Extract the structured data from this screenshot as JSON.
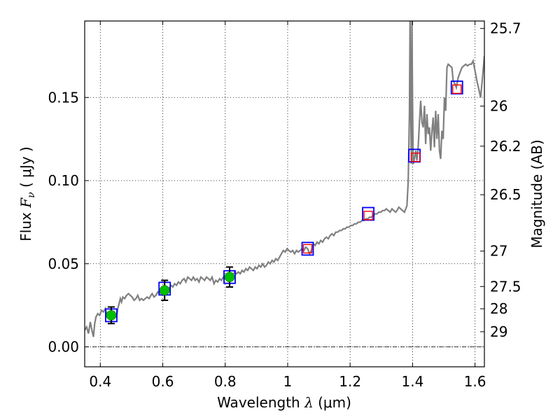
{
  "chart_data": {
    "type": "line",
    "xlabel": "Wavelength",
    "xlabel_symbol": "λ",
    "xlabel_unit": "(μm)",
    "ylabel": "Flux",
    "ylabel_symbol": "F",
    "ylabel_subscript": "ν",
    "ylabel_unit": "( μJy )",
    "y2label": "Magnitude (AB)",
    "xlim": [
      0.35,
      1.63
    ],
    "ylim": [
      -0.012,
      0.196
    ],
    "grid": true,
    "x_ticks": [
      0.4,
      0.6,
      0.8,
      1.0,
      1.2,
      1.4,
      1.6
    ],
    "x_tick_labels": [
      "0.4",
      "0.6",
      "0.8",
      "1",
      "1.2",
      "1.4",
      "1.6"
    ],
    "y_ticks": [
      0.0,
      0.05,
      0.1,
      0.15
    ],
    "y_tick_labels": [
      "0.00",
      "0.05",
      "0.10",
      "0.15"
    ],
    "mag_ticks": [
      {
        "label": "25.7",
        "y": 0.1915
      },
      {
        "label": "26",
        "y": 0.1448
      },
      {
        "label": "26.2",
        "y": 0.1207
      },
      {
        "label": "26.5",
        "y": 0.0915
      },
      {
        "label": "27",
        "y": 0.0576
      },
      {
        "label": "27.5",
        "y": 0.0363
      },
      {
        "label": "28",
        "y": 0.0229
      },
      {
        "label": "29",
        "y": 0.0091
      }
    ],
    "zero_line": {
      "y": 0.0,
      "style": "dash-dot"
    },
    "series": [
      {
        "role": "model_sed",
        "style": "line",
        "color": "#808080",
        "points": [
          [
            0.35,
            0.01
          ],
          [
            0.356,
            0.012
          ],
          [
            0.362,
            0.008
          ],
          [
            0.368,
            0.015
          ],
          [
            0.372,
            0.011
          ],
          [
            0.378,
            0.006
          ],
          [
            0.382,
            0.014
          ],
          [
            0.386,
            0.018
          ],
          [
            0.392,
            0.02
          ],
          [
            0.398,
            0.019
          ],
          [
            0.404,
            0.022
          ],
          [
            0.41,
            0.021
          ],
          [
            0.416,
            0.023
          ],
          [
            0.42,
            0.02
          ],
          [
            0.426,
            0.019
          ],
          [
            0.432,
            0.021
          ],
          [
            0.438,
            0.019
          ],
          [
            0.444,
            0.021
          ],
          [
            0.448,
            0.02
          ],
          [
            0.452,
            0.018
          ],
          [
            0.456,
            0.023
          ],
          [
            0.46,
            0.026
          ],
          [
            0.464,
            0.029
          ],
          [
            0.468,
            0.027
          ],
          [
            0.472,
            0.03
          ],
          [
            0.478,
            0.029
          ],
          [
            0.484,
            0.031
          ],
          [
            0.49,
            0.032
          ],
          [
            0.496,
            0.031
          ],
          [
            0.502,
            0.03
          ],
          [
            0.508,
            0.028
          ],
          [
            0.514,
            0.029
          ],
          [
            0.52,
            0.031
          ],
          [
            0.526,
            0.028
          ],
          [
            0.532,
            0.029
          ],
          [
            0.538,
            0.028
          ],
          [
            0.544,
            0.029
          ],
          [
            0.55,
            0.03
          ],
          [
            0.556,
            0.029
          ],
          [
            0.562,
            0.031
          ],
          [
            0.566,
            0.032
          ],
          [
            0.572,
            0.03
          ],
          [
            0.578,
            0.031
          ],
          [
            0.584,
            0.033
          ],
          [
            0.59,
            0.032
          ],
          [
            0.596,
            0.034
          ],
          [
            0.602,
            0.033
          ],
          [
            0.608,
            0.035
          ],
          [
            0.614,
            0.036
          ],
          [
            0.62,
            0.035
          ],
          [
            0.626,
            0.037
          ],
          [
            0.632,
            0.036
          ],
          [
            0.638,
            0.038
          ],
          [
            0.644,
            0.037
          ],
          [
            0.65,
            0.039
          ],
          [
            0.656,
            0.038
          ],
          [
            0.662,
            0.04
          ],
          [
            0.668,
            0.041
          ],
          [
            0.674,
            0.039
          ],
          [
            0.68,
            0.042
          ],
          [
            0.686,
            0.041
          ],
          [
            0.692,
            0.04
          ],
          [
            0.698,
            0.042
          ],
          [
            0.704,
            0.04
          ],
          [
            0.71,
            0.041
          ],
          [
            0.716,
            0.039
          ],
          [
            0.722,
            0.042
          ],
          [
            0.728,
            0.041
          ],
          [
            0.734,
            0.04
          ],
          [
            0.74,
            0.042
          ],
          [
            0.746,
            0.041
          ],
          [
            0.752,
            0.04
          ],
          [
            0.758,
            0.042
          ],
          [
            0.764,
            0.038
          ],
          [
            0.77,
            0.04
          ],
          [
            0.776,
            0.039
          ],
          [
            0.782,
            0.041
          ],
          [
            0.788,
            0.04
          ],
          [
            0.794,
            0.042
          ],
          [
            0.8,
            0.041
          ],
          [
            0.806,
            0.043
          ],
          [
            0.812,
            0.042
          ],
          [
            0.818,
            0.044
          ],
          [
            0.824,
            0.043
          ],
          [
            0.83,
            0.045
          ],
          [
            0.836,
            0.044
          ],
          [
            0.842,
            0.045
          ],
          [
            0.848,
            0.044
          ],
          [
            0.854,
            0.046
          ],
          [
            0.86,
            0.045
          ],
          [
            0.866,
            0.047
          ],
          [
            0.872,
            0.046
          ],
          [
            0.878,
            0.048
          ],
          [
            0.884,
            0.047
          ],
          [
            0.89,
            0.046
          ],
          [
            0.896,
            0.048
          ],
          [
            0.902,
            0.047
          ],
          [
            0.908,
            0.049
          ],
          [
            0.914,
            0.048
          ],
          [
            0.92,
            0.05
          ],
          [
            0.926,
            0.048
          ],
          [
            0.932,
            0.049
          ],
          [
            0.938,
            0.051
          ],
          [
            0.944,
            0.05
          ],
          [
            0.95,
            0.052
          ],
          [
            0.956,
            0.051
          ],
          [
            0.962,
            0.053
          ],
          [
            0.968,
            0.052
          ],
          [
            0.974,
            0.054
          ],
          [
            0.98,
            0.056
          ],
          [
            0.986,
            0.058
          ],
          [
            0.992,
            0.057
          ],
          [
            0.998,
            0.059
          ],
          [
            1.004,
            0.058
          ],
          [
            1.01,
            0.057
          ],
          [
            1.016,
            0.058
          ],
          [
            1.022,
            0.056
          ],
          [
            1.028,
            0.058
          ],
          [
            1.034,
            0.057
          ],
          [
            1.04,
            0.058
          ],
          [
            1.046,
            0.059
          ],
          [
            1.052,
            0.058
          ],
          [
            1.058,
            0.06
          ],
          [
            1.064,
            0.059
          ],
          [
            1.07,
            0.056
          ],
          [
            1.076,
            0.058
          ],
          [
            1.082,
            0.062
          ],
          [
            1.088,
            0.061
          ],
          [
            1.094,
            0.063
          ],
          [
            1.1,
            0.062
          ],
          [
            1.106,
            0.064
          ],
          [
            1.112,
            0.063
          ],
          [
            1.118,
            0.065
          ],
          [
            1.124,
            0.066
          ],
          [
            1.13,
            0.065
          ],
          [
            1.136,
            0.067
          ],
          [
            1.142,
            0.068
          ],
          [
            1.148,
            0.067
          ],
          [
            1.154,
            0.069
          ],
          [
            1.16,
            0.069
          ],
          [
            1.166,
            0.07
          ],
          [
            1.172,
            0.07
          ],
          [
            1.178,
            0.071
          ],
          [
            1.184,
            0.071
          ],
          [
            1.19,
            0.072
          ],
          [
            1.196,
            0.072
          ],
          [
            1.202,
            0.073
          ],
          [
            1.208,
            0.073
          ],
          [
            1.214,
            0.074
          ],
          [
            1.22,
            0.074
          ],
          [
            1.226,
            0.075
          ],
          [
            1.232,
            0.075
          ],
          [
            1.238,
            0.076
          ],
          [
            1.244,
            0.076
          ],
          [
            1.25,
            0.077
          ],
          [
            1.256,
            0.077
          ],
          [
            1.262,
            0.078
          ],
          [
            1.268,
            0.078
          ],
          [
            1.274,
            0.079
          ],
          [
            1.28,
            0.08
          ],
          [
            1.286,
            0.08
          ],
          [
            1.292,
            0.081
          ],
          [
            1.298,
            0.081
          ],
          [
            1.304,
            0.082
          ],
          [
            1.31,
            0.082
          ],
          [
            1.316,
            0.083
          ],
          [
            1.322,
            0.082
          ],
          [
            1.328,
            0.081
          ],
          [
            1.334,
            0.083
          ],
          [
            1.34,
            0.082
          ],
          [
            1.346,
            0.081
          ],
          [
            1.35,
            0.082
          ],
          [
            1.356,
            0.084
          ],
          [
            1.362,
            0.083
          ],
          [
            1.368,
            0.082
          ],
          [
            1.374,
            0.081
          ],
          [
            1.378,
            0.083
          ],
          [
            1.382,
            0.085
          ],
          [
            1.386,
            0.1
          ],
          [
            1.39,
            0.14
          ],
          [
            1.392,
            0.196
          ],
          [
            1.394,
            0.15
          ],
          [
            1.396,
            0.11
          ],
          [
            1.398,
            0.196
          ],
          [
            1.4,
            0.145
          ],
          [
            1.402,
            0.11
          ],
          [
            1.405,
            0.112
          ],
          [
            1.41,
            0.118
          ],
          [
            1.414,
            0.112
          ],
          [
            1.418,
            0.12
          ],
          [
            1.422,
            0.135
          ],
          [
            1.426,
            0.148
          ],
          [
            1.43,
            0.135
          ],
          [
            1.434,
            0.132
          ],
          [
            1.438,
            0.145
          ],
          [
            1.442,
            0.122
          ],
          [
            1.446,
            0.14
          ],
          [
            1.45,
            0.128
          ],
          [
            1.454,
            0.132
          ],
          [
            1.458,
            0.118
          ],
          [
            1.462,
            0.13
          ],
          [
            1.466,
            0.138
          ],
          [
            1.47,
            0.12
          ],
          [
            1.474,
            0.142
          ],
          [
            1.478,
            0.125
          ],
          [
            1.482,
            0.14
          ],
          [
            1.486,
            0.118
          ],
          [
            1.49,
            0.113
          ],
          [
            1.494,
            0.13
          ],
          [
            1.498,
            0.125
          ],
          [
            1.502,
            0.15
          ],
          [
            1.506,
            0.142
          ],
          [
            1.51,
            0.168
          ],
          [
            1.514,
            0.17
          ],
          [
            1.52,
            0.169
          ],
          [
            1.526,
            0.168
          ],
          [
            1.53,
            0.16
          ],
          [
            1.536,
            0.158
          ],
          [
            1.54,
            0.156
          ],
          [
            1.546,
            0.162
          ],
          [
            1.552,
            0.165
          ],
          [
            1.558,
            0.168
          ],
          [
            1.564,
            0.169
          ],
          [
            1.57,
            0.17
          ],
          [
            1.576,
            0.169
          ],
          [
            1.582,
            0.17
          ],
          [
            1.588,
            0.17
          ],
          [
            1.594,
            0.172
          ],
          [
            1.6,
            0.166
          ],
          [
            1.606,
            0.16
          ],
          [
            1.612,
            0.155
          ],
          [
            1.618,
            0.15
          ],
          [
            1.624,
            0.162
          ],
          [
            1.63,
            0.175
          ]
        ]
      },
      {
        "role": "observed_photometry",
        "style": "circle-errorbar",
        "color": "#00c000",
        "points": [
          {
            "x": 0.435,
            "y": 0.019,
            "err": 0.005
          },
          {
            "x": 0.606,
            "y": 0.034,
            "err": 0.006
          },
          {
            "x": 0.814,
            "y": 0.042,
            "err": 0.006
          }
        ]
      },
      {
        "role": "synthetic_photometry",
        "style": "open-square",
        "color": "#ff0000",
        "points": [
          {
            "x": 1.064,
            "y": 0.059
          },
          {
            "x": 1.258,
            "y": 0.079
          },
          {
            "x": 1.41,
            "y": 0.114
          },
          {
            "x": 1.542,
            "y": 0.155
          }
        ]
      },
      {
        "role": "model_bandpass_flux",
        "style": "open-square-large",
        "color": "#0000ff",
        "points": [
          {
            "x": 0.435,
            "y": 0.019
          },
          {
            "x": 0.606,
            "y": 0.035
          },
          {
            "x": 0.814,
            "y": 0.042
          },
          {
            "x": 1.064,
            "y": 0.059
          },
          {
            "x": 1.258,
            "y": 0.08
          },
          {
            "x": 1.406,
            "y": 0.115
          },
          {
            "x": 1.542,
            "y": 0.156
          }
        ]
      }
    ]
  }
}
